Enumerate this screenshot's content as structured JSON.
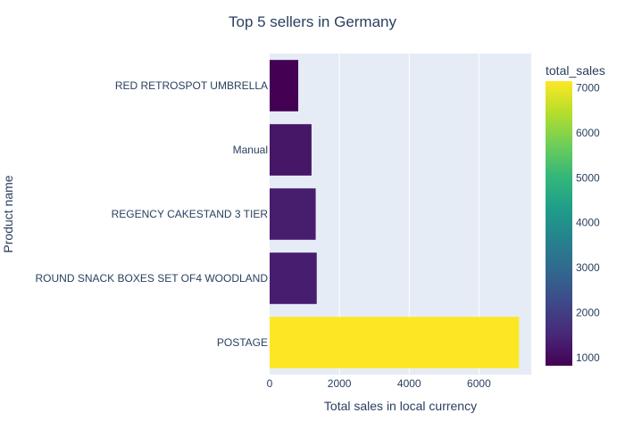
{
  "chart_data": {
    "type": "bar",
    "orientation": "horizontal",
    "title": "Top 5 sellers in Germany",
    "xlabel": "Total sales in local currency",
    "ylabel": "Product name",
    "categories": [
      "RED RETROSPOT UMBRELLA",
      "Manual",
      "REGENCY CAKESTAND 3 TIER",
      "ROUND SNACK BOXES SET OF4 WOODLAND",
      "POSTAGE"
    ],
    "values": [
      820,
      1200,
      1320,
      1350,
      7150
    ],
    "xlim": [
      0,
      7500
    ],
    "xticks": [
      0,
      2000,
      4000,
      6000
    ],
    "xtick_labels": [
      "0",
      "2000",
      "4000",
      "6000"
    ],
    "grid": true,
    "colorbar": {
      "title": "total_sales",
      "colorscale": "viridis",
      "range": [
        820,
        7150
      ],
      "ticks": [
        1000,
        2000,
        3000,
        4000,
        5000,
        6000,
        7000
      ],
      "tick_labels": [
        "1000",
        "2000",
        "3000",
        "4000",
        "5000",
        "6000",
        "7000"
      ]
    },
    "plot_background": "#e5ecf6",
    "text_color": "#2a3f5f"
  }
}
